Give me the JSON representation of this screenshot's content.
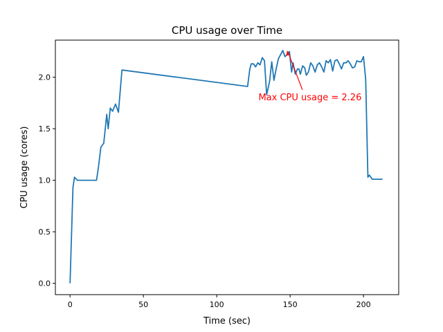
{
  "chart_data": {
    "type": "line",
    "title": "CPU usage over Time",
    "xlabel": "Time (sec)",
    "ylabel": "CPU usage (cores)",
    "xlim": [
      -10,
      224
    ],
    "ylim": [
      -0.11,
      2.36
    ],
    "xticks": [
      0,
      50,
      100,
      150,
      200
    ],
    "yticks": [
      0.0,
      0.5,
      1.0,
      1.5,
      2.0
    ],
    "xtick_labels": [
      "0",
      "50",
      "100",
      "150",
      "200"
    ],
    "ytick_labels": [
      "0.0",
      "0.5",
      "1.0",
      "1.5",
      "2.0"
    ],
    "grid": false,
    "line_color": "#1f77b4",
    "annotation": {
      "text": "Max CPU usage = 2.26",
      "x": 148,
      "y": 2.26,
      "color": "#ff0000"
    },
    "x": [
      0,
      2,
      3,
      5,
      10,
      18,
      19.3,
      21,
      23,
      25,
      26,
      27.4,
      29,
      31,
      33,
      35.4,
      121,
      122.5,
      123.5,
      125,
      126.5,
      128,
      129.5,
      131,
      132.5,
      134,
      136,
      137.5,
      139,
      140.5,
      142,
      143.5,
      145,
      146.5,
      148,
      149.5,
      151,
      152,
      153.5,
      155,
      156,
      157,
      158.5,
      160,
      161,
      162.5,
      164,
      165.5,
      167,
      168.5,
      170,
      171.5,
      173,
      174.5,
      176,
      177.5,
      179,
      180.5,
      182,
      183.5,
      185,
      186.5,
      188,
      189.5,
      191,
      192.5,
      194,
      195.5,
      197,
      198.5,
      200,
      201.5,
      203,
      204,
      205,
      206,
      207,
      209,
      210,
      213
    ],
    "values": [
      0,
      0.93,
      1.03,
      1.0,
      1.0,
      1.0,
      1.12,
      1.32,
      1.36,
      1.64,
      1.5,
      1.7,
      1.67,
      1.74,
      1.66,
      2.07,
      1.91,
      2.08,
      2.13,
      2.13,
      2.1,
      2.14,
      2.12,
      2.19,
      2.16,
      1.83,
      1.96,
      2.15,
      1.97,
      2.08,
      2.18,
      2.22,
      2.26,
      2.2,
      2.22,
      2.25,
      2.05,
      2.14,
      2.03,
      2.08,
      2.08,
      2.03,
      2.11,
      2.09,
      2.02,
      2.05,
      2.14,
      2.11,
      2.05,
      2.12,
      2.14,
      2.1,
      2.05,
      2.16,
      2.14,
      2.17,
      2.06,
      2.16,
      2.17,
      2.13,
      2.08,
      2.14,
      2.14,
      2.16,
      2.13,
      2.09,
      2.1,
      2.16,
      2.15,
      2.15,
      2.2,
      1.98,
      1.03,
      1.05,
      1.03,
      1.01,
      1.01,
      1.01,
      1.01,
      1.01
    ]
  }
}
